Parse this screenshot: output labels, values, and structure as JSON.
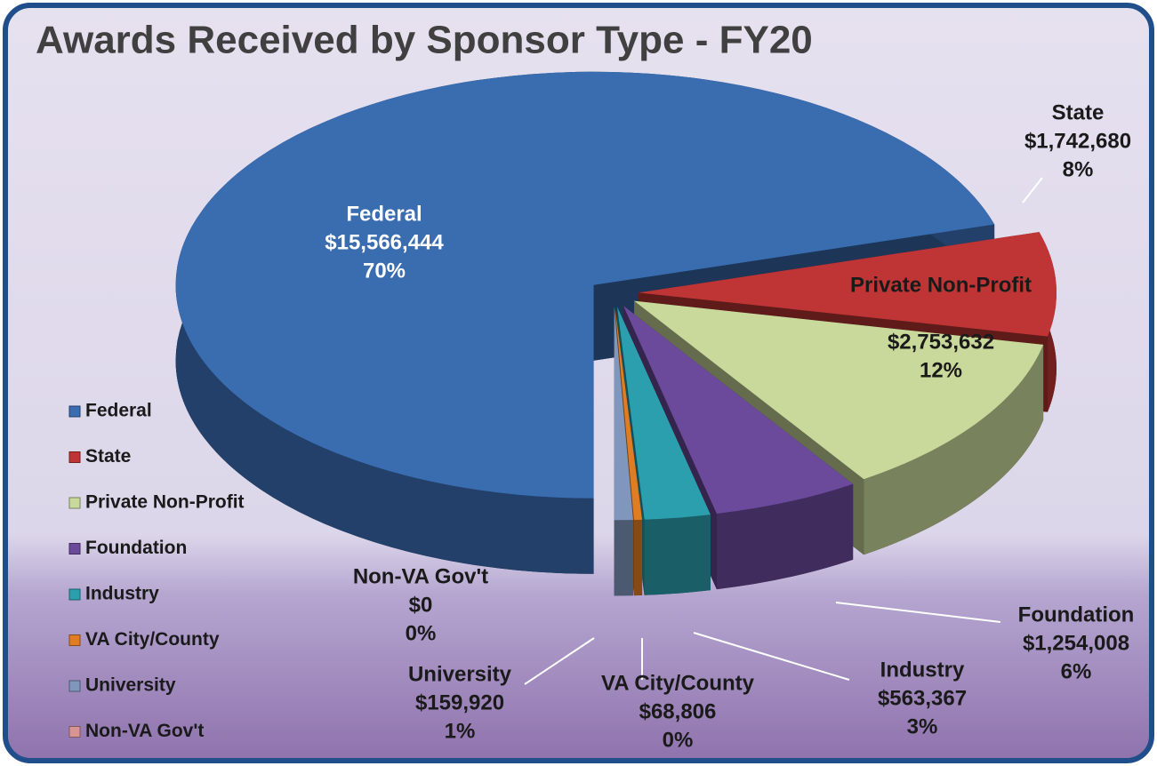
{
  "chart_data": {
    "type": "pie",
    "title": "Awards Received by Sponsor Type - FY20",
    "categories": [
      "Federal",
      "State",
      "Private Non-Profit",
      "Foundation",
      "Industry",
      "VA City/County",
      "University",
      "Non-VA Gov't"
    ],
    "slice_labels": [
      "Federal",
      "State",
      "Private Non-Profit",
      "Foundation",
      "Industry",
      "VA City/County",
      "University",
      "Non-VA Gov't"
    ],
    "values": [
      15566444,
      1742680,
      2753632,
      1254008,
      563367,
      68806,
      159920,
      0
    ],
    "value_labels": [
      "$15,566,444",
      "$1,742,680",
      "$2,753,632",
      "$1,254,008",
      "$563,367",
      "$68,806",
      "$159,920",
      "$0"
    ],
    "percents": [
      70,
      8,
      12,
      6,
      3,
      0,
      1,
      0
    ],
    "percent_labels": [
      "70%",
      "8%",
      "12%",
      "6%",
      "3%",
      "0%",
      "1%",
      "0%"
    ],
    "colors": [
      "#3a6cb0",
      "#bf3535",
      "#c9d99b",
      "#6b4a9b",
      "#2c9fae",
      "#e07c22",
      "#8096bd",
      "#d89593"
    ],
    "legend": "left"
  }
}
